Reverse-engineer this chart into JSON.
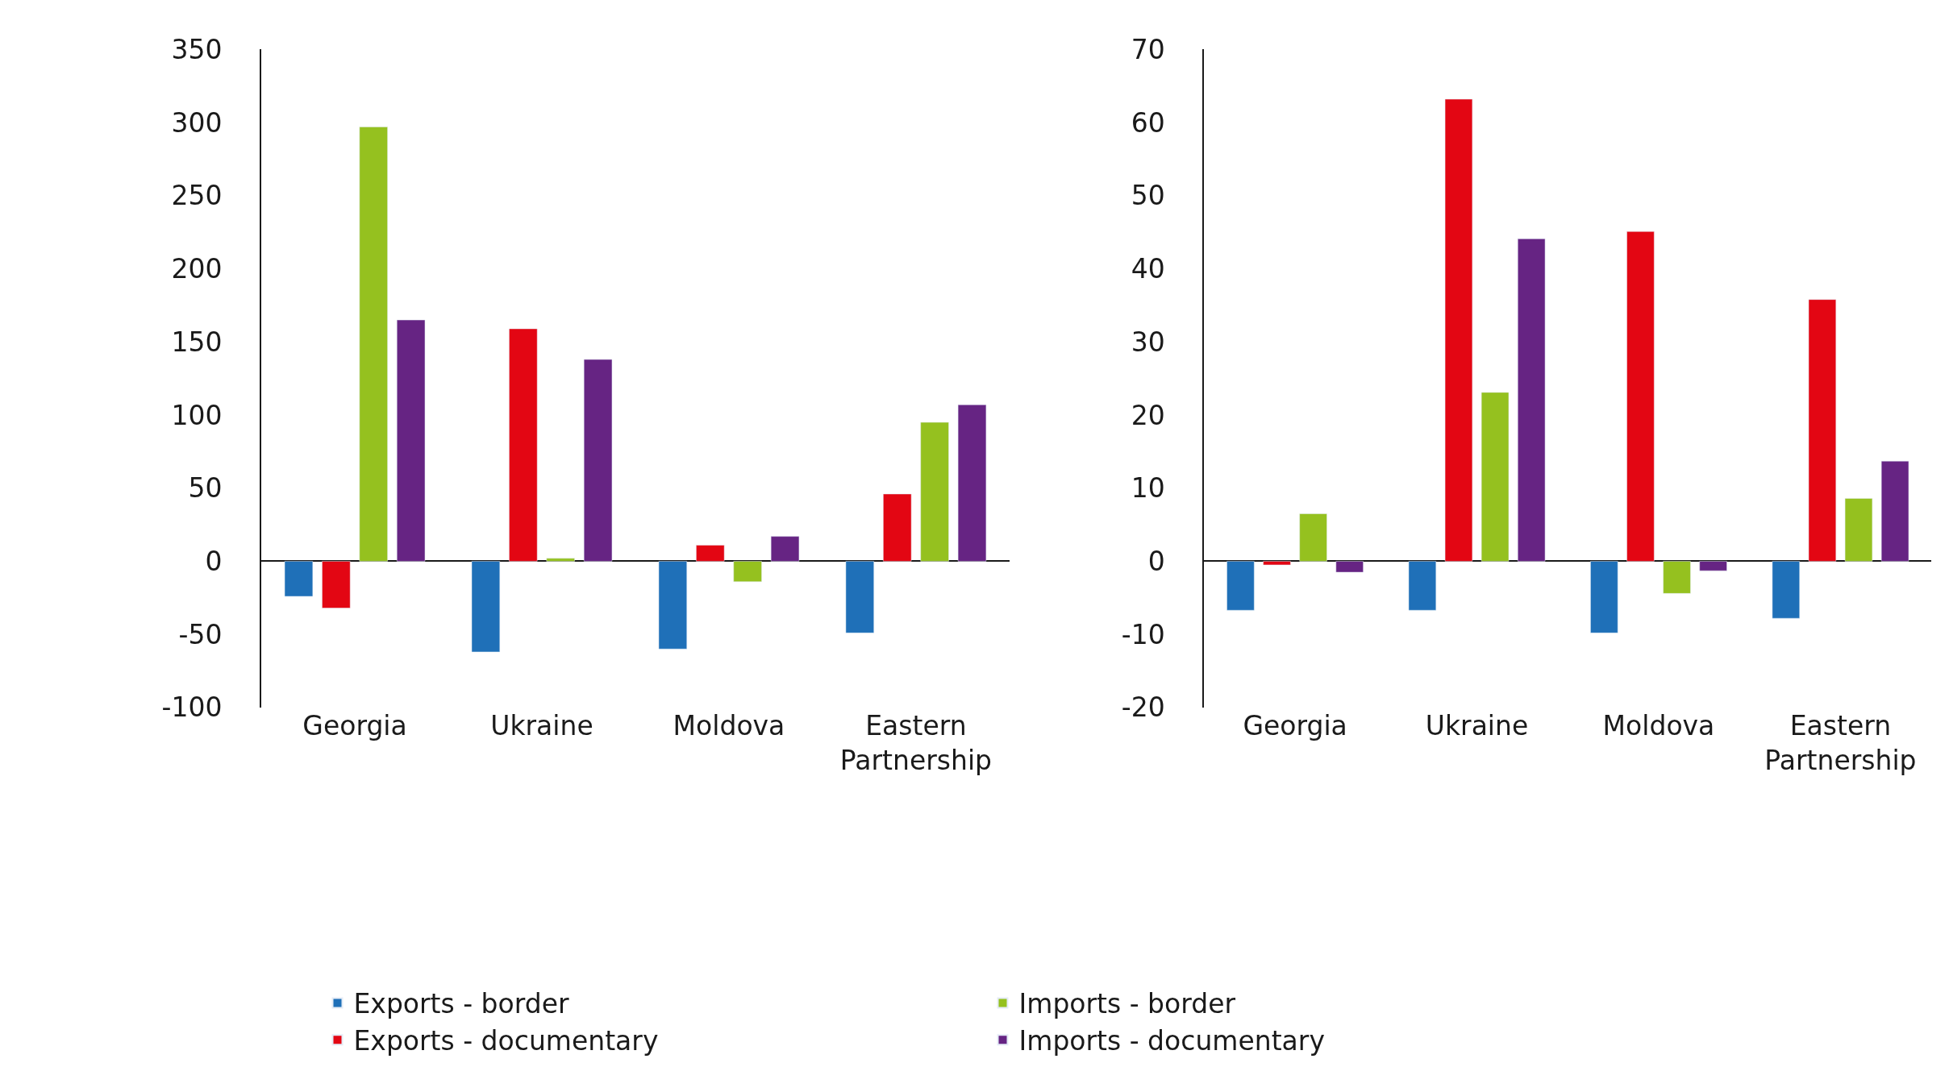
{
  "chart_data": [
    {
      "type": "bar",
      "categories": [
        "Georgia",
        "Ukraine",
        "Moldova",
        "Eastern Partnership"
      ],
      "ylim": [
        -100,
        350
      ],
      "yticks": [
        -100,
        -50,
        0,
        50,
        100,
        150,
        200,
        250,
        300,
        350
      ],
      "legend": "bottom",
      "series": [
        {
          "name": "Exports - border",
          "color": "#1f70b8",
          "values": [
            -24,
            -62,
            -60,
            -49
          ]
        },
        {
          "name": "Exports - documentary",
          "color": "#e30613",
          "values": [
            -32,
            159,
            11,
            46
          ]
        },
        {
          "name": "Imports - border",
          "color": "#95c11f",
          "values": [
            297,
            2,
            -14,
            95
          ]
        },
        {
          "name": "Imports - documentary",
          "color": "#662483",
          "values": [
            165,
            138,
            17,
            107
          ]
        }
      ]
    },
    {
      "type": "bar",
      "categories": [
        "Georgia",
        "Ukraine",
        "Moldova",
        "Eastern Partnership"
      ],
      "ylim": [
        -20,
        70
      ],
      "yticks": [
        -20,
        -10,
        0,
        10,
        20,
        30,
        40,
        50,
        60,
        70
      ],
      "series": [
        {
          "color": "#1f70b8",
          "values": [
            -6.7,
            -6.7,
            -9.8,
            -7.8
          ]
        },
        {
          "color": "#e30613",
          "values": [
            -0.5,
            63.2,
            45.1,
            35.8
          ]
        },
        {
          "color": "#95c11f",
          "values": [
            6.5,
            23.1,
            -4.4,
            8.6
          ]
        },
        {
          "color": "#662483",
          "values": [
            -1.5,
            44.1,
            -1.3,
            13.7
          ]
        }
      ]
    }
  ]
}
